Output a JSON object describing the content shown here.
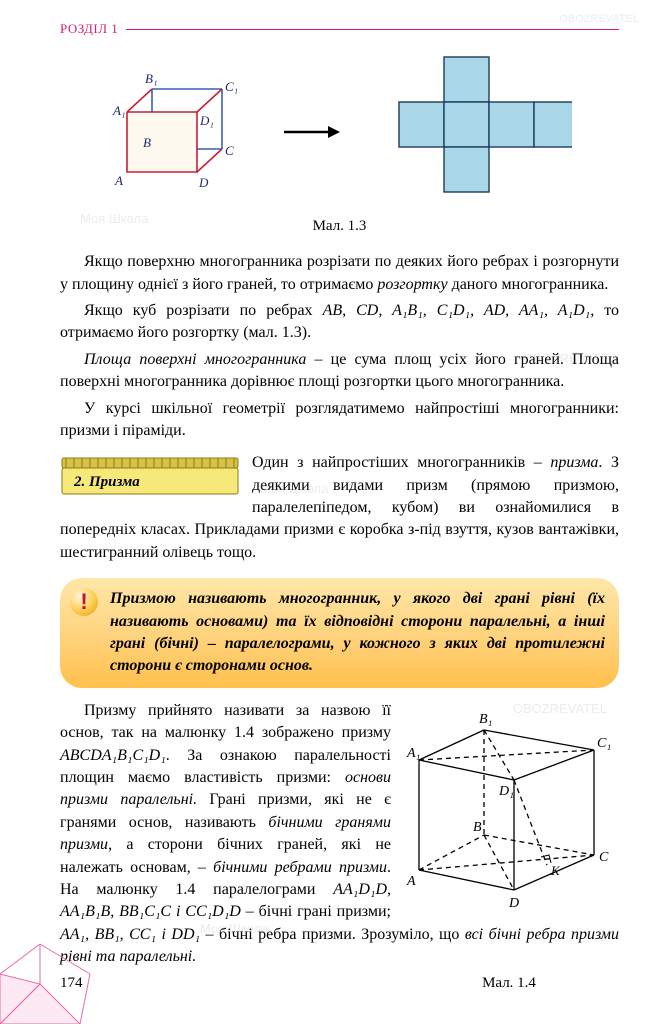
{
  "header": {
    "section": "РОЗДІЛ 1"
  },
  "figure1": {
    "caption": "Мал. 1.3",
    "cube": {
      "labels": {
        "A": "A",
        "B": "B",
        "C": "C",
        "D": "D",
        "A1": "A₁",
        "B1": "B₁",
        "C1": "C₁",
        "D1": "D₁"
      },
      "colors": {
        "front_fill": "#fef9ee",
        "front_stroke": "#c62037",
        "back_stroke": "#3a5fb0",
        "back_dash": "4,3",
        "label_color": "#1f2a6b",
        "stroke_width": 1.6
      }
    },
    "arrow": {
      "color": "#000000"
    },
    "net": {
      "fill": "#a9d7e8",
      "stroke": "#1c3b5a",
      "stroke_width": 1.4,
      "unit": 45
    }
  },
  "paragraphs": {
    "p1": "Якщо поверхню многогранника розрізати по деяких його ребрах і розгорнути у площину однієї з його граней, то отримаємо ",
    "p1_em": "розгортку",
    "p1_rest": " даного многогранника.",
    "p2_a": "Якщо куб розрізати по ребрах ",
    "p2_b": "AB, CD, A₁B₁, C₁D₁, AD, AA₁, A₁D₁,",
    "p2_c": " то отримаємо його розгортку (мал. 1.3).",
    "p3_em": "Площа поверхні многогранника",
    "p3_rest": " – це сума площ усіх його граней. Площа поверхні многогранника дорівнює площі розгортки цього многогранника.",
    "p4": "У курсі шкільної геометрії розглядатимемо найпростіші многогранники: призми і піраміди."
  },
  "ruler": {
    "title": "2. Призма",
    "colors": {
      "top": "#d6c24a",
      "body_light": "#f6e97a",
      "body_dark": "#e7d648",
      "stroke": "#8f7b12"
    }
  },
  "prism_intro": {
    "a": "Один з найпростіших многогранників – ",
    "a_em": "призма",
    "b": ". З деякими видами призм (прямою призмою, паралелепіпедом, кубом) ви ознайомилися в попередніх класах. Прикладами призми є коробка з-під взуття, кузов вантажівки, шестигранний олівець тощо."
  },
  "callout": {
    "icon": "!",
    "t1": "Призмою",
    "t2": " називають многогранник, у якого дві грані рівні (їх називають ",
    "t3": "основами",
    "t4": ") та їх відповідні сторони паралельні, а інші грані (бічні) – паралелограми, у кожного з яких дві протилежні сторони є сторонами основ."
  },
  "prism_para": {
    "a": "Призму прийнято називати за назвою її основ, так на малюнку 1.4 зображено призму ",
    "a_i": "ABCDA₁B₁C₁D₁",
    "b": ". За ознакою паралельності площин маємо властивість призми: ",
    "b_em": "основи призми паралельні.",
    "c": " Грані призми, які не є гранями основ, називають ",
    "c_em": "бічними гранями призми",
    "d": ", а сторони бічних граней, які не належать основам, – ",
    "d_em": "бічними ребрами призми",
    "e": ". На малюнку 1.4 паралелограми ",
    "e_i": "AA₁D₁D, AA₁B₁B, BB₁C₁C і CC₁D₁D",
    "f": " – бічні грані призми; ",
    "f_i": "AA₁, BB₁, CC₁ і DD₁",
    "g": " – бічні ребра призми. Зрозуміло, що ",
    "g_em": "всі бічні ребра призми рівні та паралельні."
  },
  "figure2": {
    "caption": "Мал. 1.4",
    "labels": {
      "A": "A",
      "B": "B",
      "C": "C",
      "D": "D",
      "A1": "A₁",
      "B1": "B₁",
      "C1": "C₁",
      "D1": "D₁",
      "K": "K"
    },
    "colors": {
      "stroke": "#000000",
      "dash": "5,4",
      "fill": "none",
      "label": "#000000",
      "stroke_width": 1.3
    }
  },
  "page_number": "174",
  "watermarks": {
    "a": "OBOZREVATEL",
    "b": "Моя Школа"
  }
}
